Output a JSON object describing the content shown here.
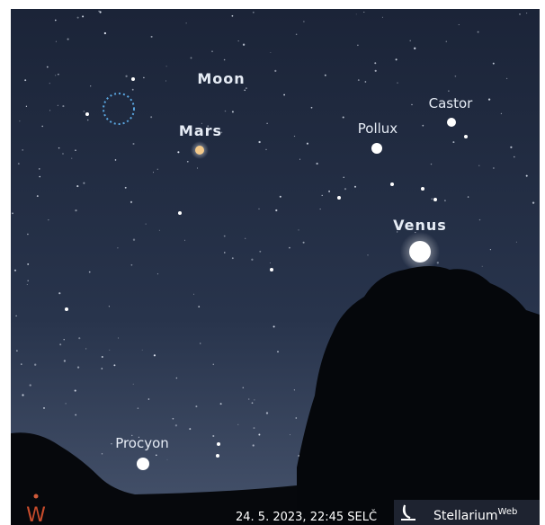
{
  "sky_labels": {
    "moon": "Moon",
    "mars": "Mars",
    "castor": "Castor",
    "pollux": "Pollux",
    "venus": "Venus",
    "procyon": "Procyon"
  },
  "compass": "W",
  "status_bar": {
    "datetime": "24. 5. 2023, 22:45 SELČ",
    "brand": "Stellarium",
    "brand_sup": "Web"
  }
}
